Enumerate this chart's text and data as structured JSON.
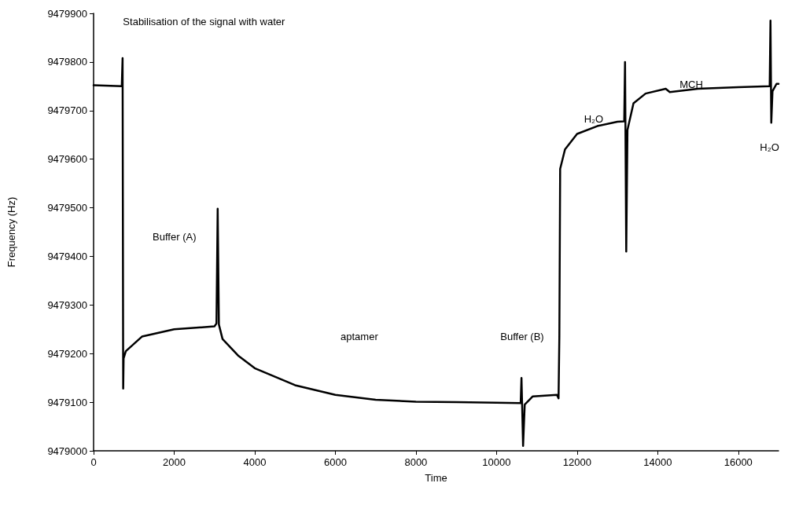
{
  "chart_data": {
    "type": "line",
    "xlabel": "Time",
    "ylabel": "Frequency (Hz)",
    "x": [
      0,
      700,
      720,
      735,
      745,
      800,
      1200,
      2000,
      3000,
      3050,
      3080,
      3110,
      3200,
      3600,
      4000,
      5000,
      6000,
      7000,
      8000,
      9000,
      10000,
      10600,
      10620,
      10660,
      10700,
      10900,
      11500,
      11540,
      11560,
      11580,
      11700,
      12000,
      12500,
      13000,
      13170,
      13190,
      13220,
      13250,
      13400,
      13700,
      14200,
      14300,
      15000,
      16000,
      16780,
      16800,
      16820,
      16850,
      16950,
      17000
    ],
    "series": [
      {
        "color": "#000000",
        "values": [
          9479752,
          9479750,
          9479808,
          9479128,
          9479190,
          9479205,
          9479235,
          9479250,
          9479256,
          9479262,
          9479498,
          9479260,
          9479230,
          9479195,
          9479170,
          9479135,
          9479115,
          9479105,
          9479101,
          9479100,
          9479099,
          9479098,
          9479150,
          9479010,
          9479095,
          9479112,
          9479115,
          9479108,
          9479235,
          9479580,
          9479620,
          9479652,
          9479668,
          9479677,
          9479678,
          9479800,
          9479410,
          9479660,
          9479715,
          9479735,
          9479745,
          9479738,
          9479745,
          9479748,
          9479750,
          9479885,
          9479675,
          9479740,
          9479755,
          9479755
        ]
      }
    ],
    "xlim": [
      0,
      17000
    ],
    "xticks": [
      0,
      2000,
      4000,
      6000,
      8000,
      10000,
      12000,
      14000,
      16000
    ],
    "ylim": [
      9479000,
      9479900
    ],
    "yticks": [
      9479000,
      9479100,
      9479200,
      9479300,
      9479400,
      9479500,
      9479600,
      9479700,
      9479800,
      9479900
    ],
    "grid": false,
    "marker": "none",
    "line_style": "solid",
    "annotations": [
      "Stabilisation of the signal with water",
      "Buffer (A)",
      "aptamer",
      "Buffer (B)",
      "H₂O",
      "MCH",
      "H₂O"
    ]
  }
}
